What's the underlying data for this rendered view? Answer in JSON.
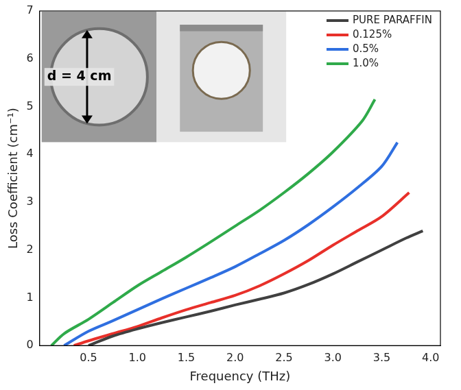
{
  "chart_data": {
    "type": "line",
    "x_label": "Frequency (THz)",
    "y_label": "Loss Coefficient (cm⁻¹)",
    "annotations": [
      "d = 4 cm"
    ],
    "xlim": [
      0,
      4.1
    ],
    "xticks": [
      0.5,
      {
        "value": 1,
        "label": "1.0"
      },
      1.5,
      {
        "value": 2,
        "label": "2.0"
      },
      2.5,
      {
        "value": 3,
        "label": "3.0"
      },
      3.5,
      {
        "value": 4,
        "label": "4.0"
      }
    ],
    "ylim": [
      0,
      7
    ],
    "yticks": [
      0,
      1,
      2,
      3,
      4,
      5,
      6,
      7
    ],
    "grid": false,
    "legend": "top-right",
    "series": [
      {
        "name": "PURE PARAFFIN",
        "color": "#404040",
        "x": [
          0.5,
          0.75,
          1.0,
          1.25,
          1.5,
          1.75,
          2.0,
          2.25,
          2.5,
          2.75,
          3.0,
          3.25,
          3.5,
          3.75,
          3.92
        ],
        "values": [
          0,
          0.2,
          0.35,
          0.48,
          0.6,
          0.72,
          0.85,
          0.97,
          1.1,
          1.28,
          1.5,
          1.75,
          2.0,
          2.25,
          2.4
        ]
      },
      {
        "name": "0.125%",
        "color": "#e8302a",
        "x": [
          0.35,
          0.5,
          0.75,
          1.0,
          1.25,
          1.5,
          1.75,
          2.0,
          2.25,
          2.5,
          2.75,
          3.0,
          3.25,
          3.5,
          3.78
        ],
        "values": [
          0,
          0.1,
          0.25,
          0.4,
          0.58,
          0.75,
          0.9,
          1.05,
          1.25,
          1.5,
          1.78,
          2.1,
          2.4,
          2.7,
          3.2
        ]
      },
      {
        "name": "0.5%",
        "color": "#2f6fe0",
        "x": [
          0.25,
          0.5,
          0.75,
          1.0,
          1.25,
          1.5,
          1.75,
          2.0,
          2.25,
          2.5,
          2.75,
          3.0,
          3.25,
          3.5,
          3.66
        ],
        "values": [
          0,
          0.3,
          0.52,
          0.75,
          0.98,
          1.2,
          1.42,
          1.65,
          1.92,
          2.2,
          2.53,
          2.9,
          3.3,
          3.75,
          4.25
        ]
      },
      {
        "name": "1.0%",
        "color": "#2faa4a",
        "x": [
          0.12,
          0.25,
          0.5,
          0.75,
          1.0,
          1.25,
          1.5,
          1.75,
          2.0,
          2.25,
          2.5,
          2.75,
          3.0,
          3.3,
          3.43
        ],
        "values": [
          0,
          0.25,
          0.55,
          0.9,
          1.25,
          1.55,
          1.85,
          2.17,
          2.5,
          2.83,
          3.2,
          3.6,
          4.05,
          4.7,
          5.15
        ]
      }
    ]
  }
}
